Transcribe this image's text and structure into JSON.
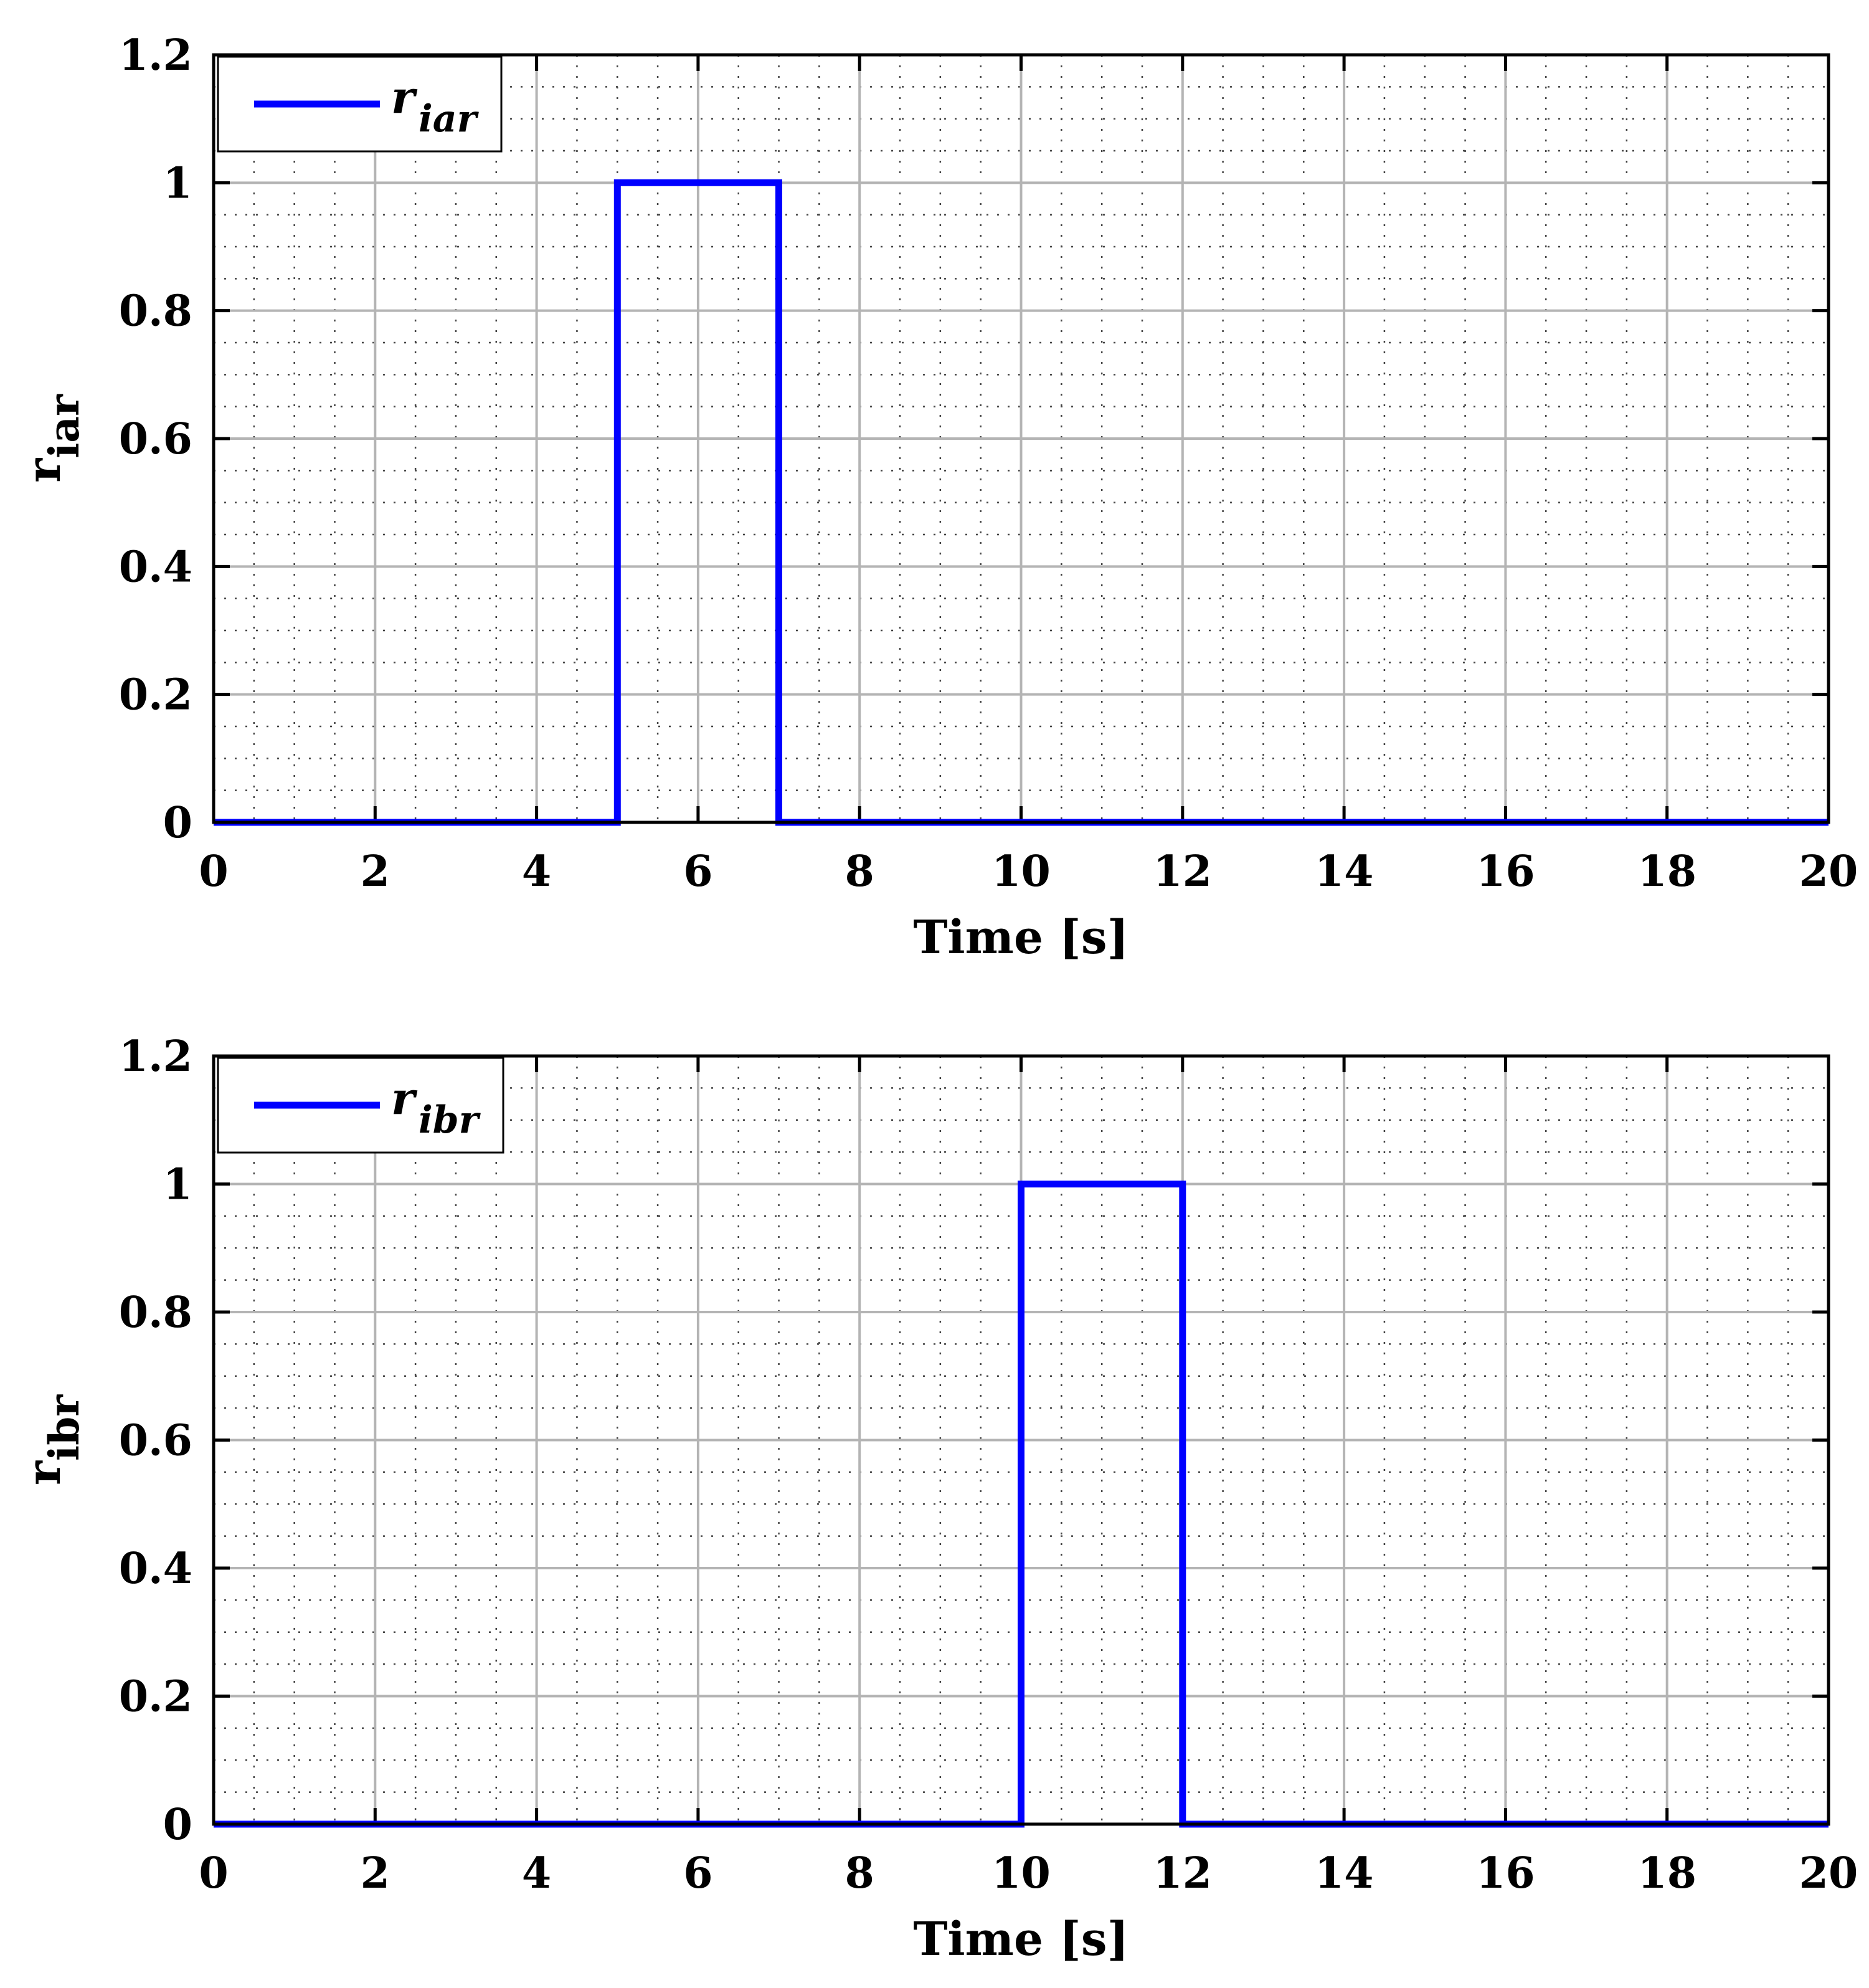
{
  "chart_data": [
    {
      "type": "line",
      "title": "",
      "xlabel": "Time [s]",
      "ylabel": "r",
      "ylabel_sub": "iar",
      "xlim": [
        0,
        20
      ],
      "ylim": [
        0,
        1.2
      ],
      "xticks": [
        "0",
        "2",
        "4",
        "6",
        "8",
        "10",
        "12",
        "14",
        "16",
        "18",
        "20"
      ],
      "yticks": [
        "0",
        "0.2",
        "0.4",
        "0.6",
        "0.8",
        "1",
        "1.2"
      ],
      "grid": "major solid, minor dotted",
      "legend_position": "top-left",
      "series": [
        {
          "name": "r",
          "name_sub": "iar",
          "color": "#0000ff",
          "x": [
            0,
            5,
            5,
            7,
            7,
            20
          ],
          "y": [
            0,
            0,
            1,
            1,
            0,
            0
          ]
        }
      ]
    },
    {
      "type": "line",
      "title": "",
      "xlabel": "Time [s]",
      "ylabel": "r",
      "ylabel_sub": "ibr",
      "xlim": [
        0,
        20
      ],
      "ylim": [
        0,
        1.2
      ],
      "xticks": [
        "0",
        "2",
        "4",
        "6",
        "8",
        "10",
        "12",
        "14",
        "16",
        "18",
        "20"
      ],
      "yticks": [
        "0",
        "0.2",
        "0.4",
        "0.6",
        "0.8",
        "1",
        "1.2"
      ],
      "grid": "major solid, minor dotted",
      "legend_position": "top-left",
      "series": [
        {
          "name": "r",
          "name_sub": "ibr",
          "color": "#0000ff",
          "x": [
            0,
            10,
            10,
            12,
            12,
            20
          ],
          "y": [
            0,
            0,
            1,
            1,
            0,
            0
          ]
        }
      ]
    }
  ]
}
